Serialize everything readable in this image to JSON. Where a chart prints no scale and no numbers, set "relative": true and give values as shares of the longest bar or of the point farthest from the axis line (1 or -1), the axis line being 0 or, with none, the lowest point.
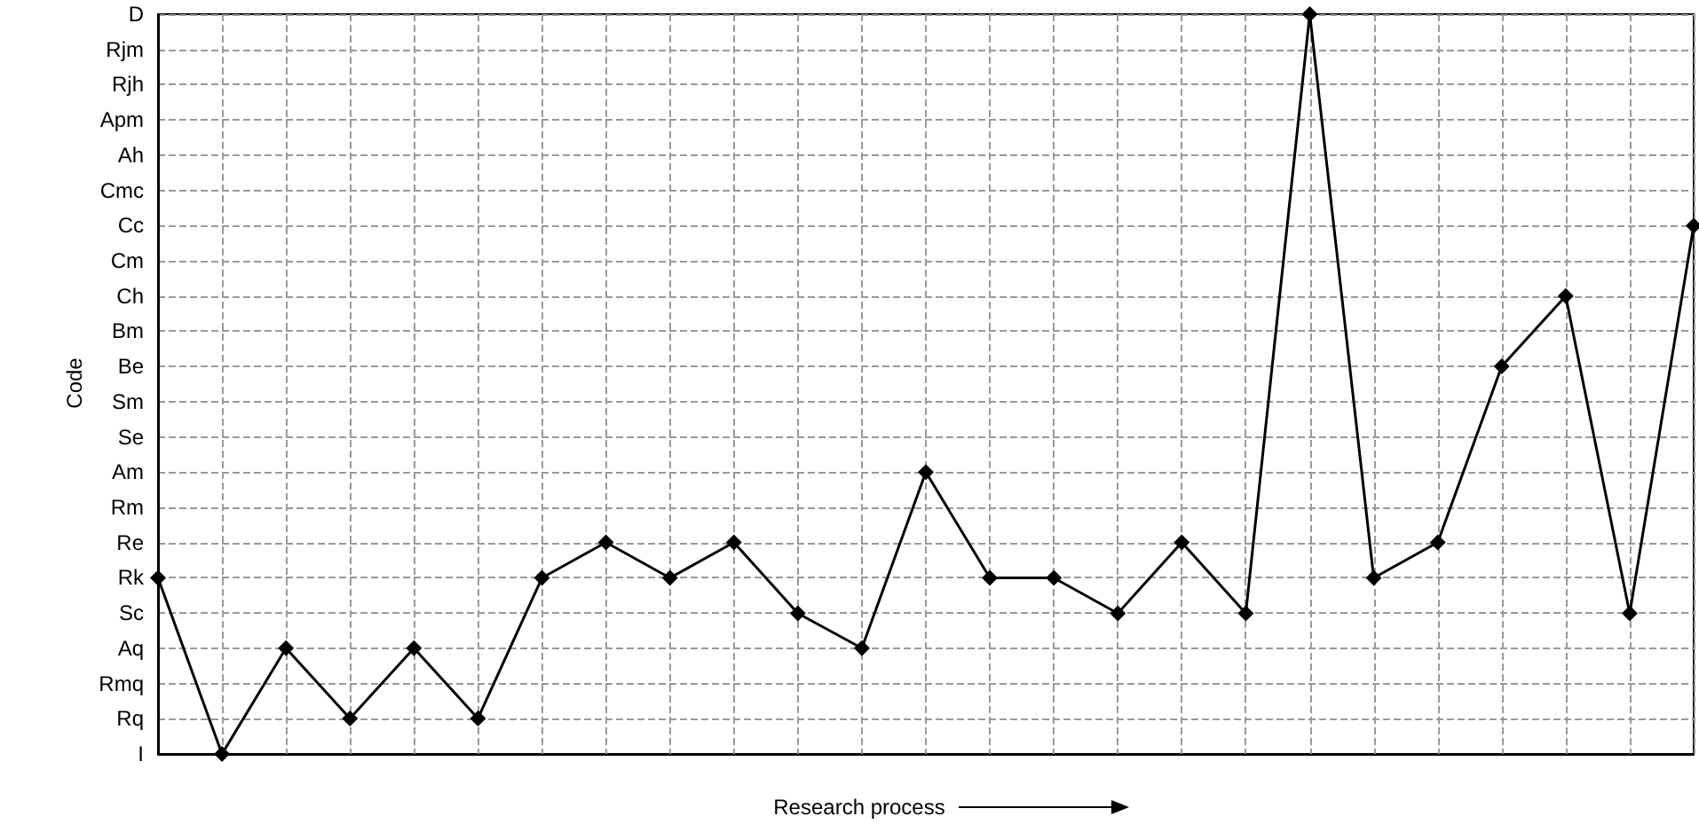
{
  "chart_data": {
    "type": "line",
    "relative": true,
    "xlabel": "Research process",
    "ylabel": "Code",
    "categories": [
      null,
      null,
      null,
      null,
      null,
      null,
      null,
      null,
      null,
      null,
      null,
      null,
      null,
      null,
      null,
      null,
      null,
      null,
      null,
      null,
      null,
      null,
      null,
      null,
      null
    ],
    "y_categories": [
      "D",
      "Rjm",
      "Rjh",
      "Apm",
      "Ah",
      "Cmc",
      "Cc",
      "Cm",
      "Ch",
      "Bm",
      "Be",
      "Sm",
      "Se",
      "Am",
      "Rm",
      "Re",
      "Rk",
      "Sc",
      "Aq",
      "Rmq",
      "Rq",
      "I"
    ],
    "series": [
      {
        "color": "#000000",
        "values": [
          0.238,
          0,
          0.143,
          0.048,
          0.143,
          0.048,
          0.238,
          0.286,
          0.238,
          0.286,
          0.19,
          0.143,
          0.381,
          0.238,
          0.238,
          0.19,
          0.286,
          0.19,
          1,
          0.238,
          0.286,
          0.524,
          0.619,
          0.19,
          0.714
        ]
      }
    ],
    "grid": true,
    "marker": "diamond",
    "line_style": "solid",
    "tick_labels": "y"
  }
}
